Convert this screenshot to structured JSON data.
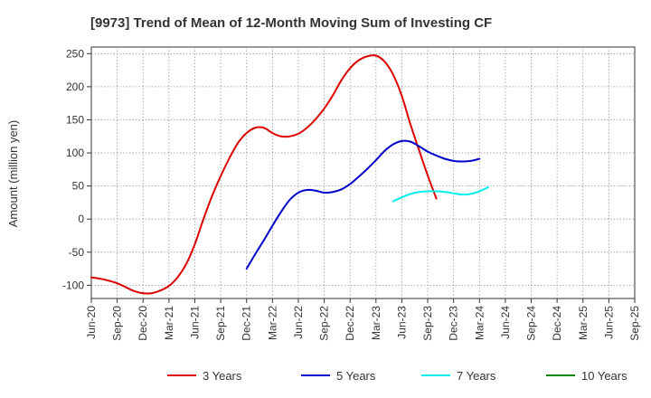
{
  "chart_data": {
    "type": "line",
    "title": "[9973]  Trend of Mean of 12-Month Moving Sum of Investing CF",
    "xlabel": "",
    "ylabel": "Amount (million yen)",
    "ylim": [
      -120,
      260
    ],
    "yticks": [
      250,
      200,
      150,
      100,
      50,
      0,
      -50,
      -100
    ],
    "x_ticks": [
      "Jun-20",
      "Sep-20",
      "Dec-20",
      "Mar-21",
      "Jun-21",
      "Sep-21",
      "Dec-21",
      "Mar-22",
      "Jun-22",
      "Sep-22",
      "Dec-22",
      "Mar-23",
      "Jun-23",
      "Sep-23",
      "Dec-23",
      "Mar-24",
      "Jun-24",
      "Sep-24",
      "Dec-24",
      "Mar-25",
      "Jun-25",
      "Sep-25"
    ],
    "grid": true,
    "legend_position": "bottom",
    "series": [
      {
        "name": "3 Years",
        "color": "#dd0000",
        "points": [
          [
            0,
            -88
          ],
          [
            1,
            -90
          ],
          [
            2,
            -93
          ],
          [
            3,
            -97
          ],
          [
            4,
            -103
          ],
          [
            5,
            -109
          ],
          [
            6,
            -112
          ],
          [
            7,
            -112
          ],
          [
            8,
            -108
          ],
          [
            9,
            -101
          ],
          [
            10,
            -88
          ],
          [
            11,
            -68
          ],
          [
            12,
            -38
          ],
          [
            13,
            0
          ],
          [
            14,
            35
          ],
          [
            15,
            65
          ],
          [
            16,
            92
          ],
          [
            17,
            115
          ],
          [
            18,
            130
          ],
          [
            19,
            138
          ],
          [
            20,
            138
          ],
          [
            21,
            130
          ],
          [
            22,
            125
          ],
          [
            23,
            125
          ],
          [
            24,
            129
          ],
          [
            25,
            138
          ],
          [
            26,
            151
          ],
          [
            27,
            167
          ],
          [
            28,
            187
          ],
          [
            29,
            210
          ],
          [
            30,
            228
          ],
          [
            31,
            240
          ],
          [
            32,
            246
          ],
          [
            33,
            247
          ],
          [
            34,
            238
          ],
          [
            35,
            218
          ],
          [
            36,
            186
          ],
          [
            37,
            143
          ],
          [
            38,
            104
          ],
          [
            39,
            66
          ],
          [
            40,
            31
          ]
        ]
      },
      {
        "name": "5 Years",
        "color": "#0000cc",
        "points": [
          [
            18,
            -75
          ],
          [
            19,
            -53
          ],
          [
            20,
            -32
          ],
          [
            21,
            -10
          ],
          [
            22,
            11
          ],
          [
            23,
            29
          ],
          [
            24,
            40
          ],
          [
            25,
            44
          ],
          [
            26,
            43
          ],
          [
            27,
            40
          ],
          [
            28,
            41
          ],
          [
            29,
            45
          ],
          [
            30,
            53
          ],
          [
            31,
            64
          ],
          [
            32,
            76
          ],
          [
            33,
            89
          ],
          [
            34,
            103
          ],
          [
            35,
            113
          ],
          [
            36,
            118
          ],
          [
            37,
            117
          ],
          [
            38,
            110
          ],
          [
            39,
            102
          ],
          [
            40,
            96
          ],
          [
            41,
            91
          ],
          [
            42,
            88
          ],
          [
            43,
            87
          ],
          [
            44,
            88
          ],
          [
            45,
            91
          ]
        ]
      },
      {
        "name": "7 Years",
        "color": "#00eeee",
        "points": [
          [
            35,
            27
          ],
          [
            36,
            33
          ],
          [
            37,
            38
          ],
          [
            38,
            41
          ],
          [
            39,
            42
          ],
          [
            40,
            42
          ],
          [
            41,
            41
          ],
          [
            42,
            39
          ],
          [
            43,
            37
          ],
          [
            44,
            38
          ],
          [
            45,
            42
          ],
          [
            46,
            48
          ]
        ]
      },
      {
        "name": "10 Years",
        "color": "#008800",
        "points": []
      }
    ],
    "x_per_tick": 3
  }
}
